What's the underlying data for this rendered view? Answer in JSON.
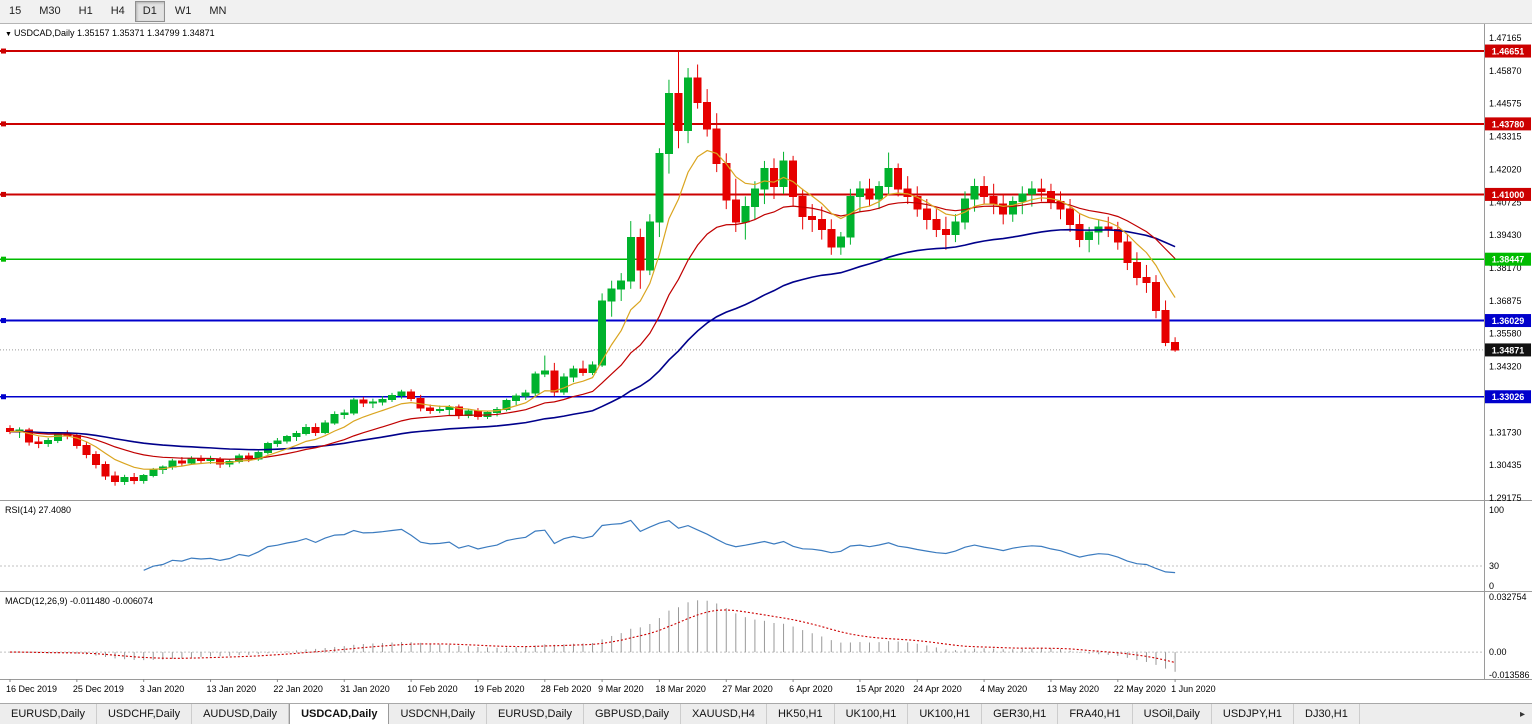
{
  "toolbar": {
    "timeframes": [
      "15",
      "M30",
      "H1",
      "H4",
      "D1",
      "W1",
      "MN"
    ],
    "active": "D1"
  },
  "icons": {
    "dropdown": "▼",
    "scroll_right": "▸"
  },
  "chart_header": {
    "symbol_label": "USDCAD,Daily",
    "ohlc": "1.35157 1.35371 1.34799 1.34871"
  },
  "chart_data": {
    "type": "candlestick",
    "symbol": "USDCAD",
    "timeframe": "Daily",
    "current_bar": {
      "open": "1.35157",
      "high": "1.35371",
      "low": "1.34799",
      "close": "1.34871"
    },
    "candle_colors": {
      "bull": "#00b22d",
      "bear": "#e60000"
    },
    "price_axis_labels": [
      "1.47165",
      "1.45870",
      "1.44575",
      "1.43315",
      "1.42020",
      "1.40725",
      "1.39430",
      "1.38170",
      "1.36875",
      "1.35580",
      "1.34320",
      "1.33025",
      "1.31730",
      "1.30435",
      "1.29175"
    ],
    "horizontal_lines": [
      {
        "value": 1.46651,
        "label": "1.46651",
        "color": "#cc0000"
      },
      {
        "value": 1.4378,
        "label": "1.43780",
        "color": "#cc0000"
      },
      {
        "value": 1.41,
        "label": "1.41000",
        "color": "#cc0000"
      },
      {
        "value": 1.38447,
        "label": "1.38447",
        "color": "#00bb00"
      },
      {
        "value": 1.36029,
        "label": "1.36029",
        "color": "#0000cc"
      },
      {
        "value": 1.33026,
        "label": "1.33026",
        "color": "#0000cc"
      }
    ],
    "current_price": {
      "value": 1.34871,
      "label": "1.34871",
      "color": "#111111"
    },
    "moving_averages": [
      {
        "name": "fast",
        "period": 8,
        "color": "#daa520"
      },
      {
        "name": "medium",
        "period": 20,
        "color": "#c00000"
      },
      {
        "name": "slow",
        "period": 50,
        "color": "#00008b"
      }
    ],
    "date_labels": [
      {
        "label": "16 Dec 2019",
        "bar": 0
      },
      {
        "label": "25 Dec 2019",
        "bar": 7
      },
      {
        "label": "3 Jan 2020",
        "bar": 14
      },
      {
        "label": "13 Jan 2020",
        "bar": 21
      },
      {
        "label": "22 Jan 2020",
        "bar": 28
      },
      {
        "label": "31 Jan 2020",
        "bar": 35
      },
      {
        "label": "10 Feb 2020",
        "bar": 42
      },
      {
        "label": "19 Feb 2020",
        "bar": 49
      },
      {
        "label": "28 Feb 2020",
        "bar": 56
      },
      {
        "label": "9 Mar 2020",
        "bar": 62
      },
      {
        "label": "18 Mar 2020",
        "bar": 68
      },
      {
        "label": "27 Mar 2020",
        "bar": 75
      },
      {
        "label": "6 Apr 2020",
        "bar": 82
      },
      {
        "label": "15 Apr 2020",
        "bar": 89
      },
      {
        "label": "24 Apr 2020",
        "bar": 95
      },
      {
        "label": "4 May 2020",
        "bar": 102
      },
      {
        "label": "13 May 2020",
        "bar": 109
      },
      {
        "label": "22 May 2020",
        "bar": 116
      },
      {
        "label": "1 Jun 2020",
        "bar": 122
      }
    ],
    "candles": [
      [
        1.3178,
        1.319,
        1.3155,
        1.3165
      ],
      [
        1.3165,
        1.3182,
        1.314,
        1.3172
      ],
      [
        1.3172,
        1.318,
        1.311,
        1.3125
      ],
      [
        1.3125,
        1.3145,
        1.31,
        1.3118
      ],
      [
        1.3118,
        1.314,
        1.3105,
        1.313
      ],
      [
        1.313,
        1.3162,
        1.312,
        1.3158
      ],
      [
        1.3158,
        1.317,
        1.3135,
        1.315
      ],
      [
        1.315,
        1.3158,
        1.3098,
        1.311
      ],
      [
        1.311,
        1.3125,
        1.306,
        1.3075
      ],
      [
        1.3075,
        1.3088,
        1.302,
        1.3035
      ],
      [
        1.3035,
        1.3048,
        1.2975,
        1.299
      ],
      [
        1.299,
        1.3008,
        1.2952,
        1.2968
      ],
      [
        1.2968,
        1.2995,
        1.2955,
        1.2985
      ],
      [
        1.2985,
        1.3002,
        1.2958,
        1.2972
      ],
      [
        1.2972,
        1.2998,
        1.296,
        1.2992
      ],
      [
        1.2992,
        1.3022,
        1.2985,
        1.3015
      ],
      [
        1.3015,
        1.3032,
        1.2998,
        1.3025
      ],
      [
        1.3025,
        1.3058,
        1.3015,
        1.305
      ],
      [
        1.305,
        1.3065,
        1.3028,
        1.3042
      ],
      [
        1.3042,
        1.3068,
        1.3035,
        1.306
      ],
      [
        1.306,
        1.3072,
        1.304,
        1.3052
      ],
      [
        1.3052,
        1.307,
        1.3038,
        1.3055
      ],
      [
        1.3055,
        1.3065,
        1.3022,
        1.3038
      ],
      [
        1.3038,
        1.3055,
        1.3025,
        1.3048
      ],
      [
        1.3048,
        1.3078,
        1.304,
        1.307
      ],
      [
        1.307,
        1.3082,
        1.3045,
        1.3058
      ],
      [
        1.3058,
        1.309,
        1.305,
        1.3082
      ],
      [
        1.3082,
        1.3125,
        1.3075,
        1.3118
      ],
      [
        1.3118,
        1.314,
        1.3105,
        1.3128
      ],
      [
        1.3128,
        1.3152,
        1.3118,
        1.3145
      ],
      [
        1.3145,
        1.3168,
        1.3128,
        1.3158
      ],
      [
        1.3158,
        1.3195,
        1.315,
        1.3182
      ],
      [
        1.3182,
        1.3198,
        1.3148,
        1.3162
      ],
      [
        1.3162,
        1.321,
        1.3155,
        1.32
      ],
      [
        1.32,
        1.3245,
        1.3192,
        1.3232
      ],
      [
        1.3232,
        1.3252,
        1.3215,
        1.3238
      ],
      [
        1.3238,
        1.3298,
        1.323,
        1.329
      ],
      [
        1.329,
        1.3302,
        1.3262,
        1.3278
      ],
      [
        1.3278,
        1.3295,
        1.3258,
        1.3282
      ],
      [
        1.3282,
        1.3305,
        1.3268,
        1.3292
      ],
      [
        1.3292,
        1.3318,
        1.3282,
        1.3308
      ],
      [
        1.3308,
        1.333,
        1.3295,
        1.3322
      ],
      [
        1.3322,
        1.3332,
        1.3285,
        1.3295
      ],
      [
        1.3295,
        1.331,
        1.3245,
        1.3258
      ],
      [
        1.3258,
        1.3272,
        1.3235,
        1.3248
      ],
      [
        1.3248,
        1.3268,
        1.3238,
        1.3252
      ],
      [
        1.3252,
        1.327,
        1.3228,
        1.3262
      ],
      [
        1.3262,
        1.3272,
        1.3215,
        1.3228
      ],
      [
        1.3228,
        1.3255,
        1.3218,
        1.3246
      ],
      [
        1.3246,
        1.3258,
        1.3212,
        1.3225
      ],
      [
        1.3225,
        1.3248,
        1.3215,
        1.324
      ],
      [
        1.324,
        1.3262,
        1.3225,
        1.3252
      ],
      [
        1.3252,
        1.3295,
        1.3245,
        1.3288
      ],
      [
        1.3288,
        1.3315,
        1.327,
        1.3305
      ],
      [
        1.3305,
        1.333,
        1.329,
        1.3318
      ],
      [
        1.3318,
        1.3402,
        1.3305,
        1.3392
      ],
      [
        1.3392,
        1.3465,
        1.338,
        1.3405
      ],
      [
        1.3405,
        1.3436,
        1.3305,
        1.3322
      ],
      [
        1.3322,
        1.3395,
        1.331,
        1.338
      ],
      [
        1.338,
        1.3425,
        1.336,
        1.3412
      ],
      [
        1.3412,
        1.3445,
        1.3385,
        1.3398
      ],
      [
        1.3398,
        1.3442,
        1.3388,
        1.3428
      ],
      [
        1.3428,
        1.371,
        1.342,
        1.368
      ],
      [
        1.368,
        1.376,
        1.3618,
        1.3728
      ],
      [
        1.3728,
        1.379,
        1.368,
        1.3758
      ],
      [
        1.3758,
        1.3995,
        1.3728,
        1.393
      ],
      [
        1.393,
        1.3965,
        1.3728,
        1.3802
      ],
      [
        1.3802,
        1.4022,
        1.3782,
        1.3992
      ],
      [
        1.3992,
        1.4282,
        1.3932,
        1.4262
      ],
      [
        1.4262,
        1.4552,
        1.4182,
        1.4498
      ],
      [
        1.4498,
        1.4665,
        1.4282,
        1.4352
      ],
      [
        1.4352,
        1.4598,
        1.4302,
        1.4558
      ],
      [
        1.4558,
        1.4612,
        1.4438,
        1.4462
      ],
      [
        1.4462,
        1.4515,
        1.4328,
        1.4358
      ],
      [
        1.4358,
        1.442,
        1.4188,
        1.4222
      ],
      [
        1.4222,
        1.4262,
        1.4042,
        1.4078
      ],
      [
        1.4078,
        1.4162,
        1.3952,
        1.3992
      ],
      [
        1.3992,
        1.4092,
        1.3922,
        1.4052
      ],
      [
        1.4052,
        1.4152,
        1.4002,
        1.4122
      ],
      [
        1.4122,
        1.4232,
        1.4062,
        1.4202
      ],
      [
        1.4202,
        1.4242,
        1.4082,
        1.4132
      ],
      [
        1.4132,
        1.4268,
        1.4102,
        1.4232
      ],
      [
        1.4232,
        1.4252,
        1.4052,
        1.4092
      ],
      [
        1.4092,
        1.4122,
        1.3962,
        1.4012
      ],
      [
        1.4012,
        1.4062,
        1.3952,
        1.4002
      ],
      [
        1.4002,
        1.4052,
        1.3922,
        1.3962
      ],
      [
        1.3962,
        1.4002,
        1.3862,
        1.3892
      ],
      [
        1.3892,
        1.3952,
        1.3862,
        1.3932
      ],
      [
        1.3932,
        1.4122,
        1.3902,
        1.4092
      ],
      [
        1.4092,
        1.4152,
        1.4032,
        1.4122
      ],
      [
        1.4122,
        1.4162,
        1.4052,
        1.4082
      ],
      [
        1.4082,
        1.4152,
        1.4042,
        1.4132
      ],
      [
        1.4132,
        1.4265,
        1.4102,
        1.4202
      ],
      [
        1.4202,
        1.4222,
        1.4092,
        1.4122
      ],
      [
        1.4122,
        1.4172,
        1.4062,
        1.4092
      ],
      [
        1.4092,
        1.4132,
        1.4012,
        1.4042
      ],
      [
        1.4042,
        1.4082,
        1.3962,
        1.4002
      ],
      [
        1.4002,
        1.4042,
        1.3932,
        1.3962
      ],
      [
        1.3962,
        1.4012,
        1.3882,
        1.3942
      ],
      [
        1.3942,
        1.4022,
        1.3912,
        1.3992
      ],
      [
        1.3992,
        1.4112,
        1.3962,
        1.4082
      ],
      [
        1.4082,
        1.4162,
        1.4032,
        1.4132
      ],
      [
        1.4132,
        1.4172,
        1.4062,
        1.4092
      ],
      [
        1.4092,
        1.4142,
        1.4022,
        1.4062
      ],
      [
        1.4062,
        1.4102,
        1.3982,
        1.4022
      ],
      [
        1.4022,
        1.4092,
        1.3992,
        1.4072
      ],
      [
        1.4072,
        1.4132,
        1.4022,
        1.4102
      ],
      [
        1.4102,
        1.4152,
        1.4052,
        1.4122
      ],
      [
        1.4122,
        1.4162,
        1.4072,
        1.4112
      ],
      [
        1.4112,
        1.4142,
        1.4042,
        1.4072
      ],
      [
        1.4072,
        1.4112,
        1.4002,
        1.4042
      ],
      [
        1.4042,
        1.4082,
        1.3952,
        1.3982
      ],
      [
        1.3982,
        1.4022,
        1.3892,
        1.3922
      ],
      [
        1.3922,
        1.3972,
        1.3872,
        1.3952
      ],
      [
        1.3952,
        1.4002,
        1.3902,
        1.3972
      ],
      [
        1.3972,
        1.4012,
        1.3932,
        1.3962
      ],
      [
        1.3962,
        1.3992,
        1.3882,
        1.3912
      ],
      [
        1.3912,
        1.3942,
        1.3802,
        1.3832
      ],
      [
        1.3832,
        1.3872,
        1.3742,
        1.3772
      ],
      [
        1.3772,
        1.3822,
        1.3712,
        1.3752
      ],
      [
        1.3752,
        1.3782,
        1.3612,
        1.3642
      ],
      [
        1.3642,
        1.3682,
        1.3502,
        1.3516
      ],
      [
        1.35157,
        1.35371,
        1.34799,
        1.34871
      ]
    ],
    "indicators": {
      "rsi": {
        "label": "RSI(14)",
        "value": "27.4080",
        "period": 14,
        "range": [
          0,
          100
        ],
        "axis_labels": [
          "100",
          "30",
          "0"
        ],
        "level": 30,
        "color": "#3b7bbf"
      },
      "macd": {
        "label": "MACD(12,26,9)",
        "value": "-0.011480 -0.006074",
        "fast": 12,
        "slow": 26,
        "signal": 9,
        "axis_labels": [
          "0.032754",
          "0.00",
          "-0.013586"
        ],
        "ylim": [
          -0.013586,
          0.032754
        ],
        "histogram_color": "#999999",
        "signal_color": "#cc0000"
      }
    }
  },
  "tabs": {
    "active_index": 3,
    "items": [
      "EURUSD,Daily",
      "USDCHF,Daily",
      "AUDUSD,Daily",
      "USDCAD,Daily",
      "USDCNH,Daily",
      "EURUSD,Daily",
      "GBPUSD,Daily",
      "XAUUSD,H4",
      "HK50,H1",
      "UK100,H1",
      "UK100,H1",
      "GER30,H1",
      "FRA40,H1",
      "USOil,Daily",
      "USDJPY,H1",
      "DJ30,H1"
    ]
  }
}
